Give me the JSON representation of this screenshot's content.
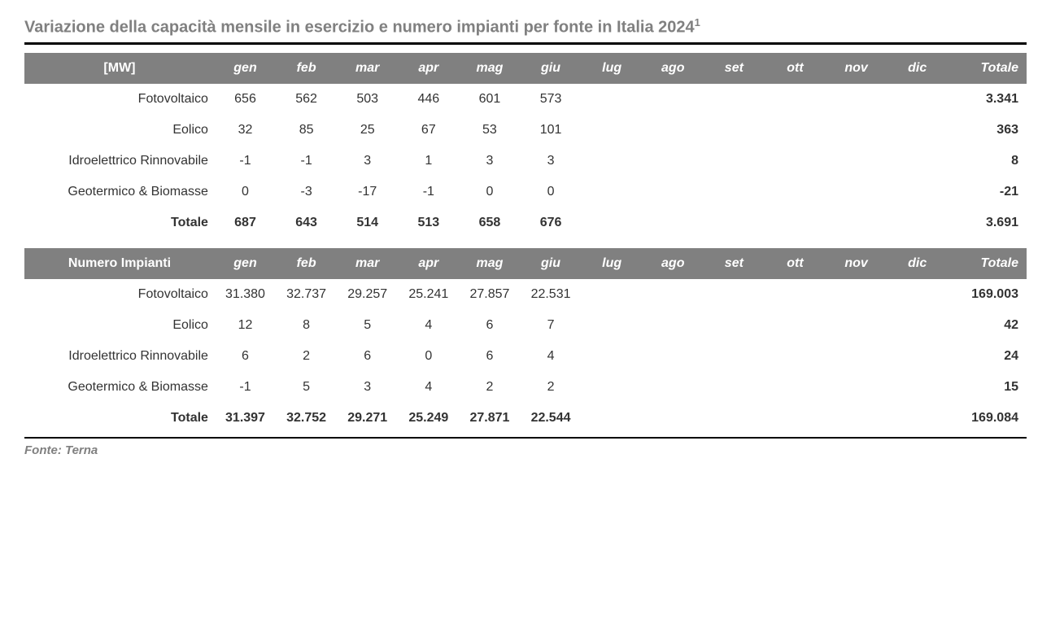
{
  "title_text": "Variazione della capacità mensile in esercizio e numero impianti per fonte in Italia 2024",
  "title_sup": "1",
  "footnote": "Fonte: Terna",
  "months": [
    "gen",
    "feb",
    "mar",
    "apr",
    "mag",
    "giu",
    "lug",
    "ago",
    "set",
    "ott",
    "nov",
    "dic"
  ],
  "total_col_label": "Totale",
  "colors": {
    "header_bg": "#808080",
    "header_fg": "#ffffff",
    "title_fg": "#808080",
    "body_fg": "#333333",
    "rule": "#000000",
    "background": "#ffffff"
  },
  "fonts": {
    "title_size_pt": 15,
    "body_size_pt": 12,
    "footnote_size_pt": 11
  },
  "tables": [
    {
      "corner_label": "[MW]",
      "rows": [
        {
          "label": "Fotovoltaico",
          "values": [
            "656",
            "562",
            "503",
            "446",
            "601",
            "573",
            "",
            "",
            "",
            "",
            "",
            ""
          ],
          "total": "3.341"
        },
        {
          "label": "Eolico",
          "values": [
            "32",
            "85",
            "25",
            "67",
            "53",
            "101",
            "",
            "",
            "",
            "",
            "",
            ""
          ],
          "total": "363"
        },
        {
          "label": "Idroelettrico Rinnovabile",
          "values": [
            "-1",
            "-1",
            "3",
            "1",
            "3",
            "3",
            "",
            "",
            "",
            "",
            "",
            ""
          ],
          "total": "8"
        },
        {
          "label": "Geotermico & Biomasse",
          "values": [
            "0",
            "-3",
            "-17",
            "-1",
            "0",
            "0",
            "",
            "",
            "",
            "",
            "",
            ""
          ],
          "total": "-21"
        }
      ],
      "total_row": {
        "label": "Totale",
        "values": [
          "687",
          "643",
          "514",
          "513",
          "658",
          "676",
          "",
          "",
          "",
          "",
          "",
          ""
        ],
        "total": "3.691"
      }
    },
    {
      "corner_label": "Numero Impianti",
      "rows": [
        {
          "label": "Fotovoltaico",
          "values": [
            "31.380",
            "32.737",
            "29.257",
            "25.241",
            "27.857",
            "22.531",
            "",
            "",
            "",
            "",
            "",
            ""
          ],
          "total": "169.003"
        },
        {
          "label": "Eolico",
          "values": [
            "12",
            "8",
            "5",
            "4",
            "6",
            "7",
            "",
            "",
            "",
            "",
            "",
            ""
          ],
          "total": "42"
        },
        {
          "label": "Idroelettrico Rinnovabile",
          "values": [
            "6",
            "2",
            "6",
            "0",
            "6",
            "4",
            "",
            "",
            "",
            "",
            "",
            ""
          ],
          "total": "24"
        },
        {
          "label": "Geotermico & Biomasse",
          "values": [
            "-1",
            "5",
            "3",
            "4",
            "2",
            "2",
            "",
            "",
            "",
            "",
            "",
            ""
          ],
          "total": "15"
        }
      ],
      "total_row": {
        "label": "Totale",
        "values": [
          "31.397",
          "32.752",
          "29.271",
          "25.249",
          "27.871",
          "22.544",
          "",
          "",
          "",
          "",
          "",
          ""
        ],
        "total": "169.084"
      }
    }
  ]
}
